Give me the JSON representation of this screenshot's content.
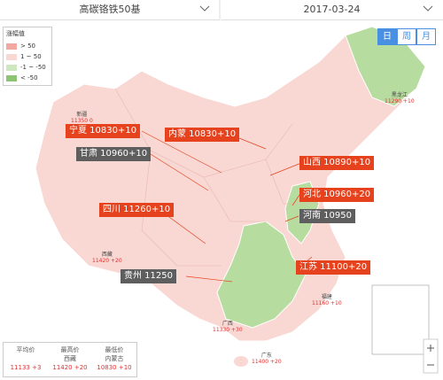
{
  "header": {
    "product": "高碳铬铁50基",
    "date": "2017-03-24",
    "tabs": [
      "日",
      "周",
      "月"
    ]
  },
  "legend": {
    "title": "涨幅值",
    "items": [
      "> 50",
      "1 ~ 50",
      "-1 ~ -50",
      "< -50"
    ]
  },
  "callouts": [
    "宁夏 10830+10",
    "内蒙 10830+10",
    "甘肃 10960+10",
    "山西 10890+10",
    "河北 10960+20",
    "四川 11260+10",
    "河南 10950",
    "贵州 11250",
    "江苏 11100+20"
  ],
  "places": [
    {
      "name": "新疆",
      "value": "11350 0"
    },
    {
      "name": "黑龙江",
      "value": "11290 +10"
    },
    {
      "name": "西藏",
      "value": "11420 +20"
    },
    {
      "name": "广西",
      "value": "11330 +30"
    },
    {
      "name": "广东",
      "value": "11400 +20"
    },
    {
      "name": "福建",
      "value": "11160 +10"
    }
  ],
  "stats": {
    "average": {
      "label": "平均价",
      "value": "11133 +3"
    },
    "highest": {
      "label": "最高价",
      "region": "西藏",
      "value": "11420 +20"
    },
    "lowest": {
      "label": "最低价",
      "region": "内蒙古",
      "value": "10830 +10"
    }
  }
}
